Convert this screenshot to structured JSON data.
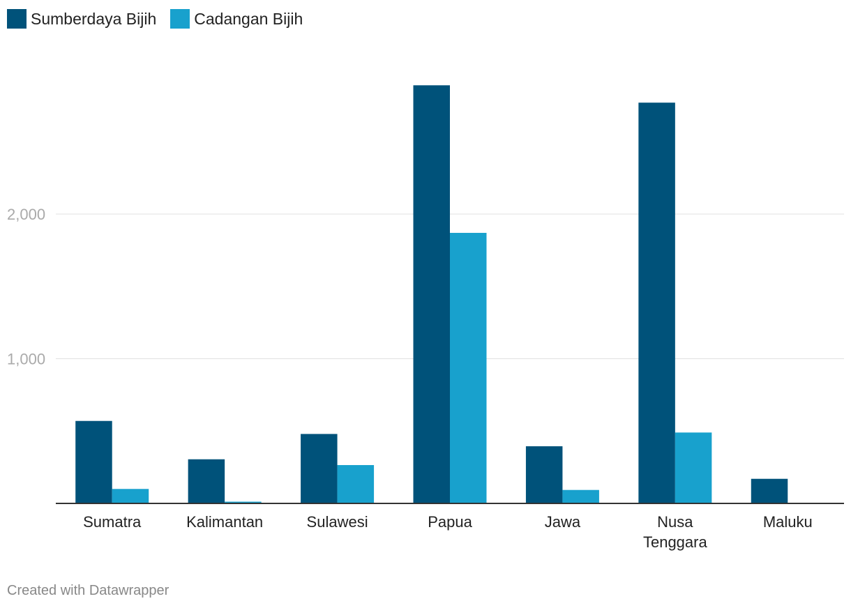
{
  "colors": {
    "series1": "#00527a",
    "series2": "#18a1cd",
    "grid": "#e0e0e0",
    "axis": "#333333",
    "tick": "#aaaaaa"
  },
  "footer": "Created with Datawrapper",
  "chart_data": {
    "type": "bar",
    "categories": [
      "Sumatra",
      "Kalimantan",
      "Sulawesi",
      "Papua",
      "Jawa",
      "Nusa Tenggara",
      "Maluku"
    ],
    "category_lines": [
      [
        "Sumatra"
      ],
      [
        "Kalimantan"
      ],
      [
        "Sulawesi"
      ],
      [
        "Papua"
      ],
      [
        "Jawa"
      ],
      [
        "Nusa",
        "Tenggara"
      ],
      [
        "Maluku"
      ]
    ],
    "series": [
      {
        "name": "Sumberdaya Bijih",
        "values": [
          570,
          305,
          480,
          2890,
          395,
          2770,
          170
        ]
      },
      {
        "name": "Cadangan Bijih",
        "values": [
          100,
          12,
          265,
          1870,
          93,
          490,
          0
        ]
      }
    ],
    "yticks": [
      1000,
      2000
    ],
    "ytick_labels": [
      "1,000",
      "2,000"
    ],
    "ylim": [
      0,
      3000
    ],
    "grid": true,
    "legend": "top-left",
    "title": "",
    "xlabel": "",
    "ylabel": ""
  }
}
